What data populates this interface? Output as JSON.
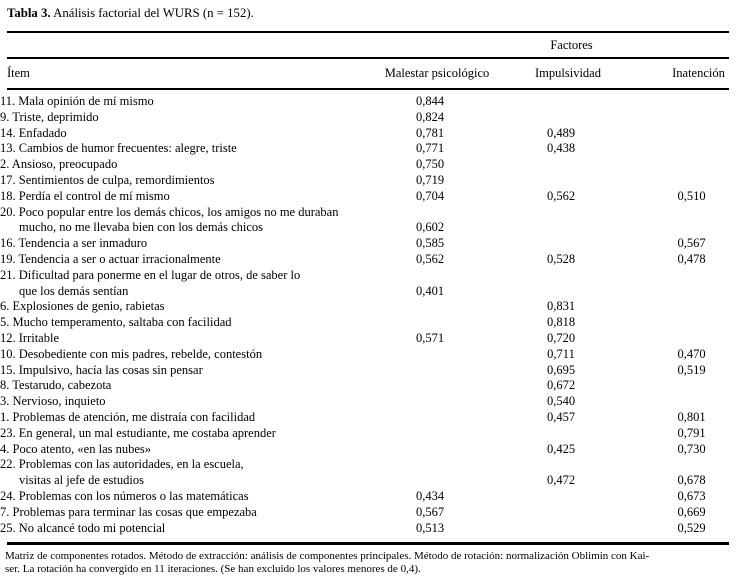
{
  "title": {
    "label": "Tabla 3.",
    "text": " Análisis factorial del WURS (n = 152)."
  },
  "table": {
    "spanner": "Factores",
    "columns": [
      "Ítem",
      "Malestar psicológico",
      "Impulsividad",
      "Inatención"
    ],
    "rows": [
      {
        "item": [
          "11. Mala opinión de mí mismo"
        ],
        "values": [
          "0,844",
          "",
          ""
        ]
      },
      {
        "item": [
          "9. Triste, deprimido"
        ],
        "values": [
          "0,824",
          "",
          ""
        ]
      },
      {
        "item": [
          "14. Enfadado"
        ],
        "values": [
          "0,781",
          "0,489",
          ""
        ]
      },
      {
        "item": [
          "13. Cambios de humor frecuentes: alegre, triste"
        ],
        "values": [
          "0,771",
          "0,438",
          ""
        ]
      },
      {
        "item": [
          "2. Ansioso, preocupado"
        ],
        "values": [
          "0,750",
          "",
          ""
        ]
      },
      {
        "item": [
          "17. Sentimientos de culpa, remordimientos"
        ],
        "values": [
          "0,719",
          "",
          ""
        ]
      },
      {
        "item": [
          "18. Perdía el control de mí mismo"
        ],
        "values": [
          "0,704",
          "0,562",
          "0,510"
        ]
      },
      {
        "item": [
          "20. Poco popular entre los demás chicos, los amigos no me duraban",
          "mucho, no me llevaba bien con los demás chicos"
        ],
        "values": [
          "0,602",
          "",
          ""
        ]
      },
      {
        "item": [
          "16. Tendencia a ser inmaduro"
        ],
        "values": [
          "0,585",
          "",
          "0,567"
        ]
      },
      {
        "item": [
          "19. Tendencia a ser o actuar irracionalmente"
        ],
        "values": [
          "0,562",
          "0,528",
          "0,478"
        ]
      },
      {
        "item": [
          "21. Dificultad para ponerme en el lugar de otros, de saber lo",
          "que los demás sentían"
        ],
        "values": [
          "0,401",
          "",
          ""
        ]
      },
      {
        "item": [
          "6. Explosiones de genio, rabietas"
        ],
        "values": [
          "",
          "0,831",
          ""
        ]
      },
      {
        "item": [
          "5. Mucho temperamento, saltaba con facilidad"
        ],
        "values": [
          "",
          "0,818",
          ""
        ]
      },
      {
        "item": [
          "12. Irritable"
        ],
        "values": [
          "0,571",
          "0,720",
          ""
        ]
      },
      {
        "item": [
          "10. Desobediente con mis padres, rebelde, contestón"
        ],
        "values": [
          "",
          "0,711",
          "0,470"
        ]
      },
      {
        "item": [
          "15. Impulsivo, hacía las cosas sin pensar"
        ],
        "values": [
          "",
          "0,695",
          "0,519"
        ]
      },
      {
        "item": [
          "8. Testarudo, cabezota"
        ],
        "values": [
          "",
          "0,672",
          ""
        ]
      },
      {
        "item": [
          "3. Nervioso, inquieto"
        ],
        "values": [
          "",
          "0,540",
          ""
        ]
      },
      {
        "item": [
          "1. Problemas de atención, me distraía con facilidad"
        ],
        "values": [
          "",
          "0,457",
          "0,801"
        ]
      },
      {
        "item": [
          "23. En general, un mal estudiante, me costaba aprender"
        ],
        "values": [
          "",
          "",
          "0,791"
        ]
      },
      {
        "item": [
          "4. Poco atento, «en las nubes»"
        ],
        "values": [
          "",
          "0,425",
          "0,730"
        ]
      },
      {
        "item": [
          "22. Problemas con las autoridades, en la escuela,",
          "visitas al jefe de estudios"
        ],
        "values": [
          "",
          "0,472",
          "0,678"
        ]
      },
      {
        "item": [
          "24. Problemas con los números o las matemáticas"
        ],
        "values": [
          "0,434",
          "",
          "0,673"
        ]
      },
      {
        "item": [
          "7. Problemas para terminar las cosas que empezaba"
        ],
        "values": [
          "0,567",
          "",
          "0,669"
        ]
      },
      {
        "item": [
          "25. No alcancé todo mi potencial"
        ],
        "values": [
          "0,513",
          "",
          "0,529"
        ]
      }
    ]
  },
  "footnote": {
    "lines": [
      "Matriz de componentes rotados. Método de extracción: análisis de componentes principales. Método de rotación: normalización Oblimin con Kai-",
      "ser. La rotación ha convergido en 11 iteraciones. (Se han excluido los valores menores de 0,4)."
    ]
  },
  "colors": {
    "text": "#000000",
    "background": "#ffffff",
    "rule": "#000000"
  }
}
